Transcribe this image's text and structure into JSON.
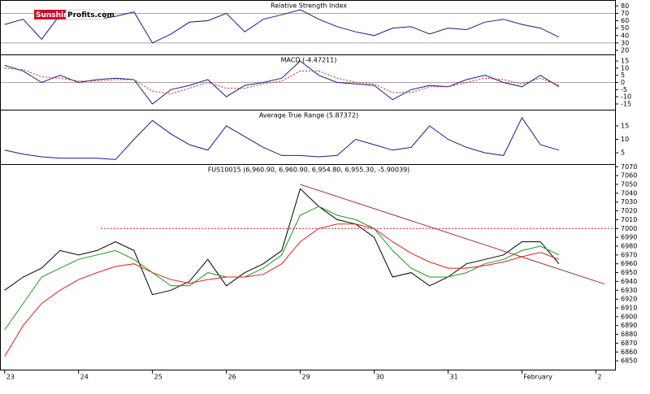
{
  "logo": {
    "part1": "Sunshine",
    "part2": "Profits.com"
  },
  "chart_data": [
    {
      "type": "line",
      "title": "Relative Strength Index",
      "xlim": [
        -0.03,
        8.26
      ],
      "ylim": [
        14.5,
        88
      ],
      "yticks": [
        20,
        30,
        40,
        50,
        60,
        70,
        80
      ],
      "hlines": [
        70,
        30
      ],
      "x": [
        0,
        0.25,
        0.5,
        0.75,
        1,
        1.25,
        1.5,
        1.75,
        2,
        2.25,
        2.5,
        2.75,
        3,
        3.25,
        3.5,
        3.75,
        4,
        4.25,
        4.5,
        4.75,
        5,
        5.25,
        5.5,
        5.75,
        6,
        6.25,
        6.5,
        6.75,
        7,
        7.25,
        7.5
      ],
      "series": [
        {
          "color": "#1a1a8c",
          "values": [
            55,
            62,
            35,
            68,
            65,
            62,
            66,
            72,
            30,
            42,
            58,
            60,
            70,
            45,
            62,
            68,
            75,
            62,
            52,
            45,
            40,
            50,
            52,
            42,
            50,
            48,
            58,
            62,
            55,
            50,
            38
          ]
        }
      ]
    },
    {
      "type": "line",
      "title": "MACD (-4.47211)",
      "xlim": [
        -0.03,
        8.26
      ],
      "ylim": [
        -19,
        19.6
      ],
      "yticks": [
        -15,
        -10,
        -5,
        0,
        5,
        10,
        15
      ],
      "hlines": [
        0
      ],
      "x": [
        0,
        0.25,
        0.5,
        0.75,
        1,
        1.25,
        1.5,
        1.75,
        2,
        2.25,
        2.5,
        2.75,
        3,
        3.25,
        3.5,
        3.75,
        4,
        4.25,
        4.5,
        4.75,
        5,
        5.25,
        5.5,
        5.75,
        6,
        6.25,
        6.5,
        6.75,
        7,
        7.25,
        7.5
      ],
      "series": [
        {
          "color": "#1a1a8c",
          "values": [
            12,
            8,
            0,
            5,
            0,
            2,
            3,
            2,
            -15,
            -5,
            -2,
            2,
            -10,
            -2,
            0,
            3,
            15,
            5,
            0,
            -1,
            -2,
            -12,
            -5,
            -2,
            -3,
            2,
            5,
            0,
            -3,
            5,
            -3
          ]
        },
        {
          "color": "#d02020",
          "dash": true,
          "values": [
            10,
            9,
            4,
            3,
            1,
            1,
            2,
            2,
            -6,
            -8,
            -4,
            0,
            -4,
            -4,
            -1,
            1,
            8,
            8,
            3,
            0,
            -1,
            -7,
            -7,
            -3,
            -3,
            0,
            3,
            2,
            -1,
            3,
            -2
          ]
        }
      ]
    },
    {
      "type": "line",
      "title": "Average True Range (5.87372)",
      "xlim": [
        -0.03,
        8.26
      ],
      "ylim": [
        0.8,
        21
      ],
      "yticks": [
        5,
        10,
        15
      ],
      "x": [
        0,
        0.25,
        0.5,
        0.75,
        1,
        1.25,
        1.5,
        1.75,
        2,
        2.25,
        2.5,
        2.75,
        3,
        3.25,
        3.5,
        3.75,
        4,
        4.25,
        4.5,
        4.75,
        5,
        5.25,
        5.5,
        5.75,
        6,
        6.25,
        6.5,
        6.75,
        7,
        7.25,
        7.5
      ],
      "series": [
        {
          "color": "#1a1a8c",
          "values": [
            6,
            4.5,
            3.5,
            3,
            3,
            3,
            2.5,
            10,
            17,
            12,
            8,
            6,
            15,
            11,
            7,
            4,
            4,
            3.5,
            4,
            10,
            8,
            6,
            7,
            15,
            10,
            7,
            5,
            4,
            18,
            8,
            6
          ]
        }
      ]
    },
    {
      "type": "line",
      "title": "FUS10015 (6,960.90, 6,960.90, 6,954.80, 6,955.30, -5.90039)",
      "xlim": [
        -0.03,
        8.26
      ],
      "ylim": [
        6840,
        7073
      ],
      "yticks": [
        6850,
        6860,
        6870,
        6880,
        6890,
        6900,
        6910,
        6920,
        6930,
        6940,
        6950,
        6960,
        6970,
        6980,
        6990,
        7000,
        7010,
        7020,
        7030,
        7040,
        7050,
        7060,
        7070
      ],
      "xticks": [
        {
          "value": 0,
          "label": "23"
        },
        {
          "value": 1,
          "label": "24"
        },
        {
          "value": 2,
          "label": "25"
        },
        {
          "value": 3,
          "label": "26"
        },
        {
          "value": 4,
          "label": "29"
        },
        {
          "value": 5,
          "label": "30"
        },
        {
          "value": 6,
          "label": "31"
        },
        {
          "value": 7,
          "label": "February"
        },
        {
          "value": 8,
          "label": "2"
        }
      ],
      "x": [
        0,
        0.25,
        0.5,
        0.75,
        1,
        1.25,
        1.5,
        1.75,
        2,
        2.25,
        2.5,
        2.75,
        3,
        3.25,
        3.5,
        3.75,
        4,
        4.25,
        4.5,
        4.75,
        5,
        5.25,
        5.5,
        5.75,
        6,
        6.25,
        6.5,
        6.75,
        7,
        7.25,
        7.5
      ],
      "series": [
        {
          "color": "#000000",
          "values": [
            6930,
            6945,
            6955,
            6975,
            6970,
            6975,
            6985,
            6975,
            6925,
            6930,
            6940,
            6965,
            6935,
            6950,
            6960,
            6975,
            7045,
            7025,
            7010,
            7005,
            6990,
            6945,
            6950,
            6935,
            6945,
            6960,
            6965,
            6970,
            6985,
            6985,
            6960
          ]
        },
        {
          "color": "#1a9a1a",
          "values": [
            6885,
            6915,
            6945,
            6955,
            6965,
            6970,
            6975,
            6965,
            6950,
            6935,
            6935,
            6950,
            6945,
            6945,
            6955,
            6970,
            7015,
            7025,
            7015,
            7010,
            7000,
            6975,
            6955,
            6945,
            6945,
            6950,
            6960,
            6965,
            6975,
            6980,
            6970
          ]
        },
        {
          "color": "#e02020",
          "values": [
            6855,
            6890,
            6915,
            6930,
            6942,
            6950,
            6957,
            6960,
            6950,
            6942,
            6938,
            6942,
            6945,
            6945,
            6948,
            6960,
            6985,
            7000,
            7005,
            7005,
            7000,
            6985,
            6972,
            6962,
            6955,
            6955,
            6958,
            6962,
            6968,
            6973,
            6965
          ]
        },
        {
          "color": "#a03030",
          "x": [
            4.0,
            8.12
          ],
          "values": [
            7050,
            6937
          ]
        },
        {
          "color": "#d02020",
          "dash": true,
          "x": [
            1.3,
            8.26
          ],
          "values": [
            7000,
            7000
          ]
        }
      ]
    }
  ]
}
